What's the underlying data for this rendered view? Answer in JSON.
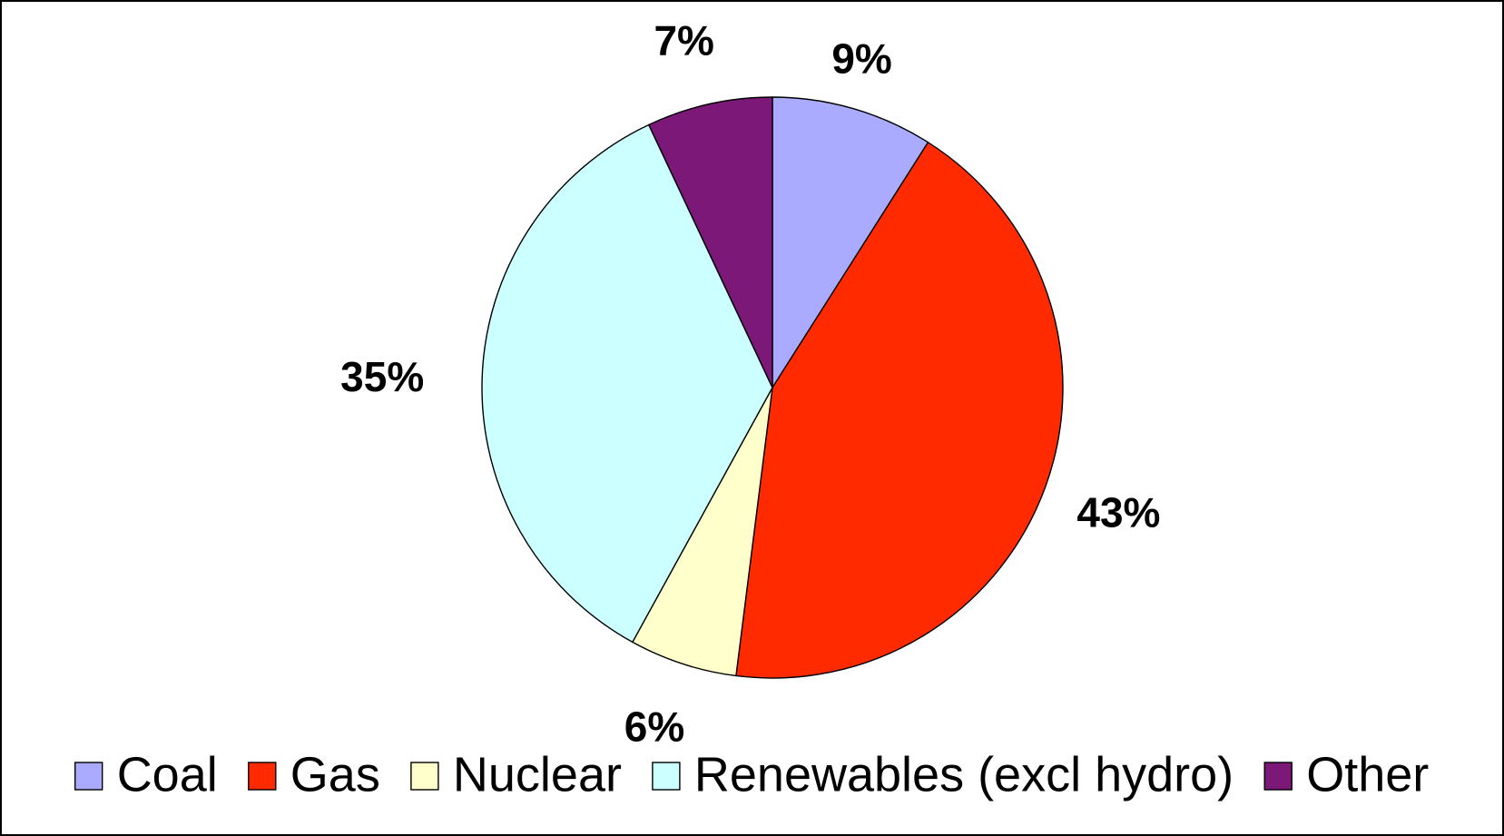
{
  "chart_data": {
    "type": "pie",
    "title": "",
    "categories": [
      "Coal",
      "Gas",
      "Nuclear",
      "Renewables (excl hydro)",
      "Other"
    ],
    "values": [
      9,
      43,
      6,
      35,
      7
    ],
    "value_labels": [
      "9%",
      "43%",
      "6%",
      "35%",
      "7%"
    ],
    "unit": "%",
    "colors": [
      "#aaaaff",
      "#ff2a00",
      "#ffffcc",
      "#ccffff",
      "#7b1878"
    ],
    "start_angle": "12 o'clock",
    "direction": "clockwise",
    "legend": {
      "placement": "bottom",
      "entries": [
        "Coal",
        "Gas",
        "Nuclear",
        "Renewables (excl hydro)",
        "Other"
      ]
    },
    "border": true,
    "grid": false
  }
}
